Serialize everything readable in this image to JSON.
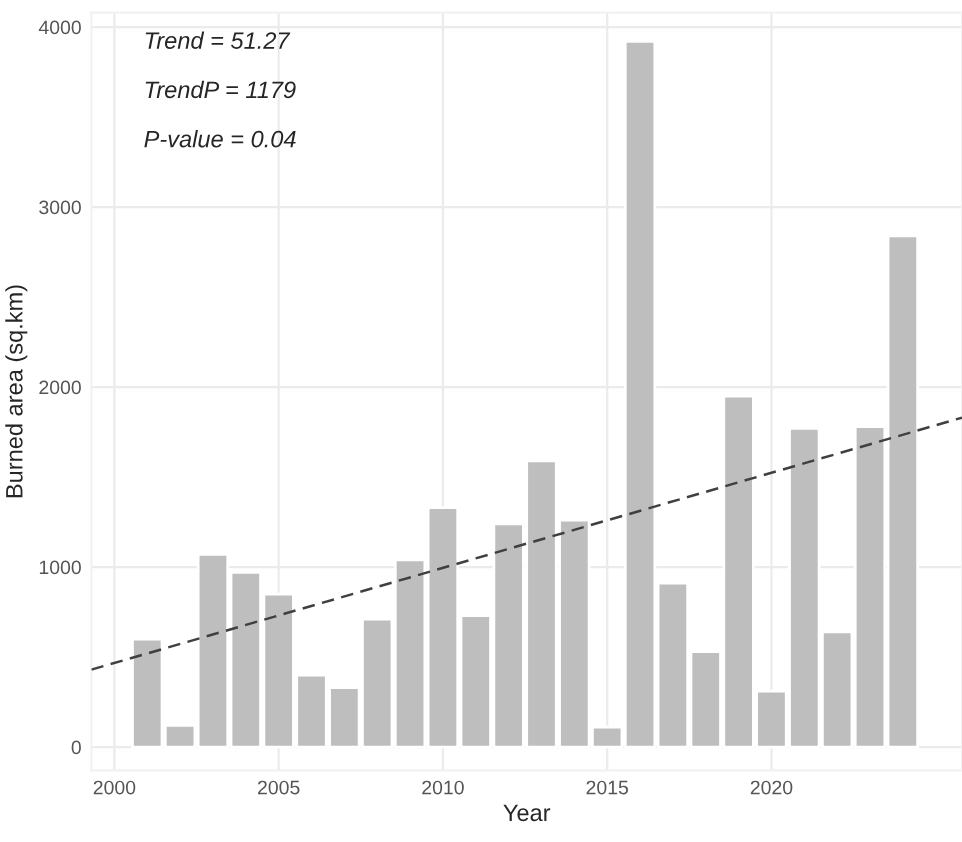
{
  "chart_data": {
    "type": "bar",
    "xlabel": "Year",
    "ylabel": "Burned area (sq.km)",
    "x": [
      2001,
      2002,
      2003,
      2004,
      2005,
      2006,
      2007,
      2008,
      2009,
      2010,
      2011,
      2012,
      2013,
      2014,
      2015,
      2016,
      2017,
      2018,
      2019,
      2020,
      2021,
      2022,
      2023,
      2024
    ],
    "series": [
      {
        "color": "#bebebe",
        "values": [
          600,
          120,
          1070,
          970,
          850,
          400,
          330,
          710,
          1040,
          1330,
          730,
          1240,
          1590,
          1260,
          110,
          3920,
          910,
          530,
          1950,
          310,
          1770,
          640,
          1780,
          2840
        ]
      },
      {
        "type": "line",
        "color": "#404040",
        "line_style": "dashed",
        "x": [
          1999.3,
          2025.8
        ],
        "values": [
          430,
          1830
        ]
      }
    ],
    "annotations": [
      "Trend = 51.27",
      "TrendP = 1179",
      "P-value = 0.04"
    ],
    "xlim": [
      1999.3,
      2025.8
    ],
    "xticks": [
      2000,
      2005,
      2010,
      2015,
      2020
    ],
    "ylim": [
      -130,
      4080
    ],
    "yticks": [
      0,
      1000,
      2000,
      3000,
      4000
    ],
    "grid": true
  }
}
